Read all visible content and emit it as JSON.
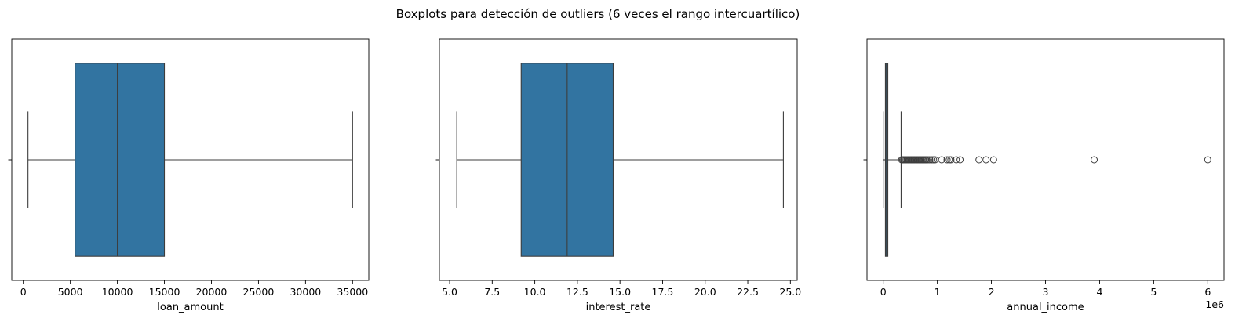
{
  "figure": {
    "title": "Boxplots para detección de outliers (6 veces el rango intercuartílico)"
  },
  "colors": {
    "box_fill": "#3274a1",
    "line": "#3d3d3d",
    "frame": "#000000",
    "background": "#ffffff"
  },
  "chart_data": [
    {
      "type": "boxplot",
      "orientation": "horizontal",
      "xlabel": "loan_amount",
      "xlim": [
        -1225,
        36725
      ],
      "xticks": [
        0,
        5000,
        10000,
        15000,
        20000,
        25000,
        30000,
        35000
      ],
      "xtick_labels": [
        "0",
        "5000",
        "10000",
        "15000",
        "20000",
        "25000",
        "30000",
        "35000"
      ],
      "whisker_low": 500,
      "q1": 5500,
      "median": 10000,
      "q3": 15000,
      "whisker_high": 35000,
      "outliers": []
    },
    {
      "type": "boxplot",
      "orientation": "horizontal",
      "xlabel": "interest_rate",
      "xlim": [
        4.4,
        25.4
      ],
      "xticks": [
        5,
        7.5,
        10,
        12.5,
        15,
        17.5,
        20,
        22.5,
        25
      ],
      "xtick_labels": [
        "5.0",
        "7.5",
        "10.0",
        "12.5",
        "15.0",
        "17.5",
        "20.0",
        "22.5",
        "25.0"
      ],
      "whisker_low": 5.42,
      "q1": 9.2,
      "median": 11.9,
      "q3": 14.6,
      "whisker_high": 24.59,
      "outliers": []
    },
    {
      "type": "boxplot",
      "orientation": "horizontal",
      "xlabel": "annual_income",
      "offset_text": "1e6",
      "xlim": [
        -300000,
        6300000
      ],
      "xticks": [
        0,
        1000000,
        2000000,
        3000000,
        4000000,
        5000000,
        6000000
      ],
      "xtick_labels": [
        "0",
        "1",
        "2",
        "3",
        "4",
        "5",
        "6"
      ],
      "whisker_low": 0,
      "q1": 40000,
      "median": 60000,
      "q3": 85000,
      "whisker_high": 330000,
      "outliers": [
        340000,
        360000,
        380000,
        400000,
        420000,
        440000,
        460000,
        480000,
        500000,
        520000,
        540000,
        560000,
        580000,
        600000,
        620000,
        640000,
        660000,
        680000,
        700000,
        720000,
        740000,
        760000,
        780000,
        800000,
        830000,
        860000,
        900000,
        930000,
        960000,
        1080000,
        1180000,
        1220000,
        1250000,
        1350000,
        1420000,
        1770000,
        1900000,
        2040000,
        3900000,
        6000000
      ]
    }
  ]
}
